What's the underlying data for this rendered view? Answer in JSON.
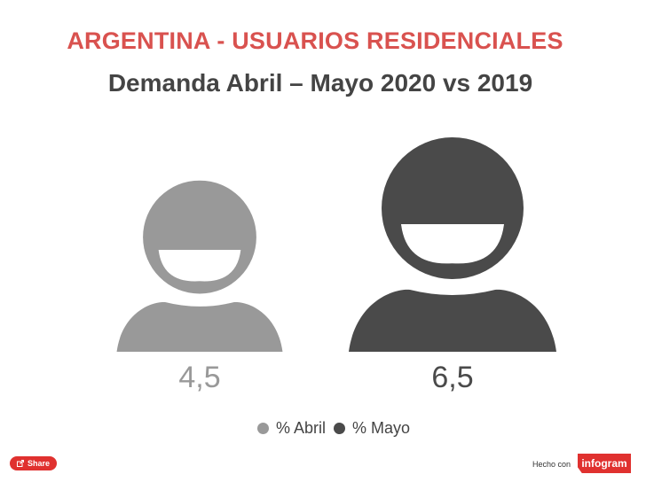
{
  "header": {
    "title": "ARGENTINA - USUARIOS RESIDENCIALES",
    "subtitle": "Demanda Abril – Mayo 2020 vs 2019"
  },
  "colors": {
    "title": "#d9524f",
    "abril": "#999999",
    "mayo": "#4a4a4a",
    "brand": "#e0312f"
  },
  "chart_data": {
    "type": "pictograph",
    "categories": [
      "% Abril",
      "% Mayo"
    ],
    "series": [
      {
        "name": "% Abril",
        "value": 4.5,
        "label": "4,5"
      },
      {
        "name": "% Mayo",
        "value": 6.5,
        "label": "6,5"
      }
    ],
    "legend_position": "bottom"
  },
  "legend": {
    "items": [
      "% Abril",
      "% Mayo"
    ]
  },
  "footer": {
    "share_label": "Share",
    "share_icon": "share-icon",
    "made_with": "Hecho con",
    "brand": "infogram"
  }
}
